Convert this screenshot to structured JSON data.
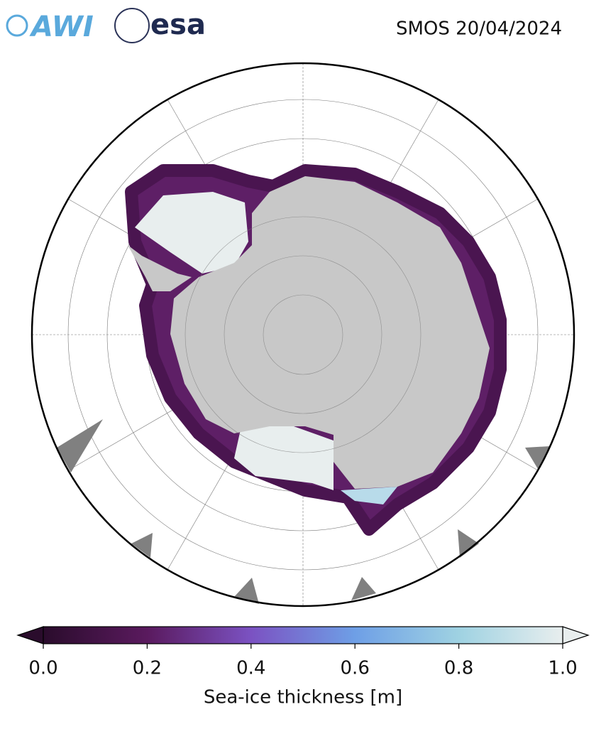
{
  "header": {
    "logos": [
      "AWI",
      "esa"
    ],
    "title": "SMOS 20/04/2024"
  },
  "colorbar": {
    "label": "Sea-ice thickness [m]",
    "lim": [
      0,
      1
    ],
    "ticks": [
      {
        "value": 0,
        "label": "0.0"
      },
      0.2,
      0.4,
      0.6,
      0.8,
      {
        "value": 1,
        "label": "1.0"
      }
    ],
    "colors": [
      "#2a0c2c",
      "#5a1a5e",
      "#7b52c2",
      "#6e9fe6",
      "#9fd2e2",
      "#e8eeee"
    ]
  }
}
